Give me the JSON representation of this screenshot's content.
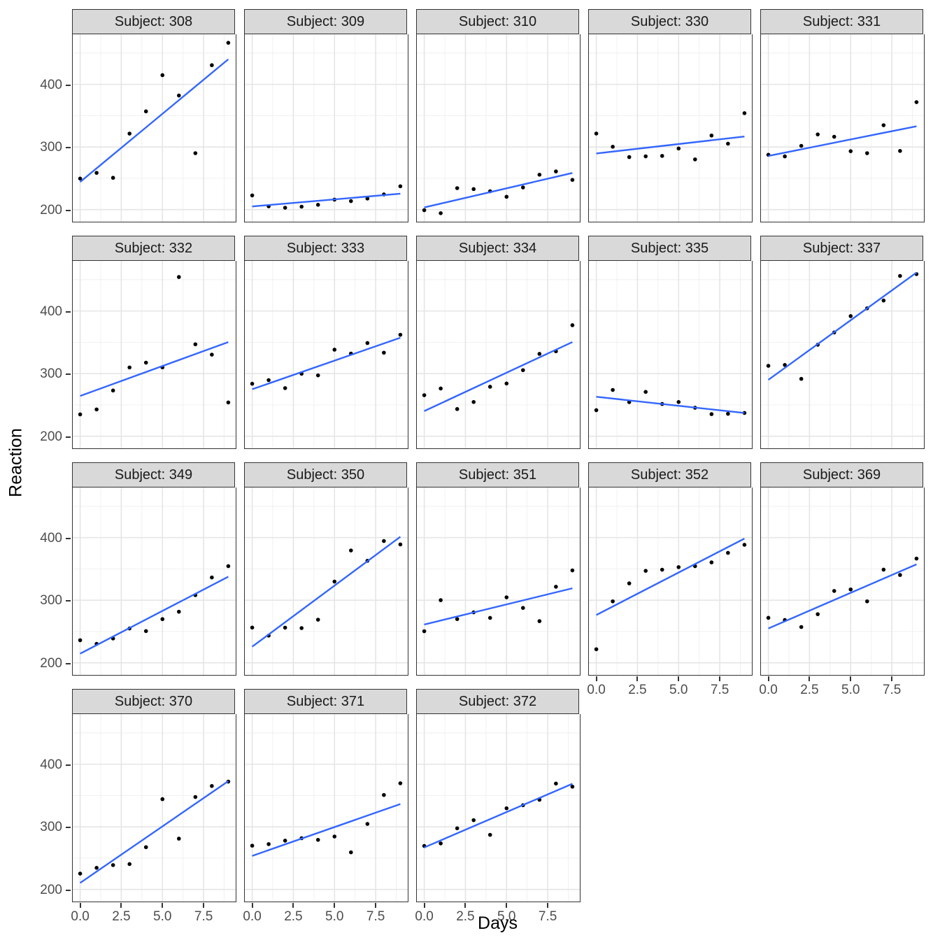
{
  "chart_data": {
    "type": "scatter",
    "xlabel": "Days",
    "ylabel": "Reaction",
    "facet_variable": "Subject",
    "x_tick_labels": [
      "0.0",
      "2.5",
      "5.0",
      "7.5"
    ],
    "x_tick_values": [
      0,
      2.5,
      5,
      7.5
    ],
    "y_tick_labels": [
      "200",
      "300",
      "400"
    ],
    "y_tick_values": [
      200,
      300,
      400
    ],
    "x_minor_values": [
      1.25,
      3.75,
      6.25,
      8.75
    ],
    "y_minor_values": [
      250,
      350,
      450
    ],
    "xlim": [
      -0.45,
      9.45
    ],
    "ylim": [
      180.7,
      480.0
    ],
    "days": [
      0,
      1,
      2,
      3,
      4,
      5,
      6,
      7,
      8,
      9
    ],
    "smooth": {
      "method": "lm",
      "color": "#3366FF"
    },
    "point_color": "#000000",
    "facets": [
      {
        "subject": "308",
        "label": "Subject: 308",
        "reaction": [
          249.6,
          258.7,
          250.8,
          321.4,
          356.9,
          414.7,
          382.2,
          290.1,
          430.6,
          466.4
        ]
      },
      {
        "subject": "309",
        "label": "Subject: 309",
        "reaction": [
          222.7,
          205.3,
          203.0,
          204.7,
          207.7,
          216.0,
          213.6,
          217.7,
          224.3,
          237.3
        ]
      },
      {
        "subject": "310",
        "label": "Subject: 310",
        "reaction": [
          199.1,
          194.3,
          234.3,
          232.8,
          229.3,
          220.5,
          235.4,
          255.8,
          261.0,
          247.5
        ]
      },
      {
        "subject": "330",
        "label": "Subject: 330",
        "reaction": [
          321.5,
          300.4,
          283.9,
          285.1,
          285.8,
          297.6,
          280.2,
          318.3,
          305.3,
          354.0
        ]
      },
      {
        "subject": "331",
        "label": "Subject: 331",
        "reaction": [
          287.6,
          285.0,
          301.8,
          320.1,
          316.3,
          293.3,
          290.1,
          334.8,
          293.7,
          371.6
        ]
      },
      {
        "subject": "332",
        "label": "Subject: 332",
        "reaction": [
          234.9,
          242.8,
          273.0,
          309.8,
          317.5,
          310.0,
          454.2,
          346.8,
          330.3,
          253.9
        ]
      },
      {
        "subject": "333",
        "label": "Subject: 333",
        "reaction": [
          283.8,
          289.6,
          276.8,
          299.8,
          297.2,
          338.2,
          332.0,
          348.8,
          333.4,
          362.0
        ]
      },
      {
        "subject": "334",
        "label": "Subject: 334",
        "reaction": [
          265.5,
          276.2,
          243.4,
          254.7,
          279.0,
          284.2,
          305.5,
          331.5,
          335.7,
          377.3
        ]
      },
      {
        "subject": "335",
        "label": "Subject: 335",
        "reaction": [
          241.6,
          273.9,
          254.5,
          270.8,
          251.5,
          254.6,
          245.5,
          235.3,
          235.8,
          237.2
        ]
      },
      {
        "subject": "337",
        "label": "Subject: 337",
        "reaction": [
          312.4,
          313.8,
          291.6,
          346.1,
          365.7,
          391.8,
          404.3,
          416.7,
          455.9,
          458.9
        ]
      },
      {
        "subject": "349",
        "label": "Subject: 349",
        "reaction": [
          236.1,
          230.3,
          238.9,
          254.9,
          250.7,
          269.8,
          281.6,
          308.1,
          336.3,
          354.4
        ]
      },
      {
        "subject": "350",
        "label": "Subject: 350",
        "reaction": [
          256.3,
          243.5,
          256.2,
          255.5,
          268.9,
          329.7,
          379.4,
          362.9,
          394.5,
          389.1
        ]
      },
      {
        "subject": "351",
        "label": "Subject: 351",
        "reaction": [
          250.5,
          300.1,
          269.9,
          280.6,
          271.8,
          304.6,
          287.7,
          266.6,
          321.5,
          347.6
        ]
      },
      {
        "subject": "352",
        "label": "Subject: 352",
        "reaction": [
          221.7,
          298.2,
          326.9,
          346.9,
          348.7,
          352.8,
          354.4,
          360.4,
          375.6,
          388.5
        ]
      },
      {
        "subject": "369",
        "label": "Subject: 369",
        "reaction": [
          271.9,
          268.4,
          257.2,
          277.7,
          314.8,
          317.2,
          298.2,
          348.8,
          340.3,
          366.5
        ]
      },
      {
        "subject": "370",
        "label": "Subject: 370",
        "reaction": [
          225.3,
          234.5,
          238.9,
          240.5,
          267.5,
          344.2,
          281.1,
          347.6,
          365.2,
          372.2
        ]
      },
      {
        "subject": "371",
        "label": "Subject: 371",
        "reaction": [
          269.9,
          272.4,
          277.9,
          281.8,
          279.2,
          284.5,
          259.3,
          304.6,
          350.8,
          369.5
        ]
      },
      {
        "subject": "372",
        "label": "Subject: 372",
        "reaction": [
          269.4,
          273.5,
          297.6,
          310.6,
          287.2,
          329.6,
          334.5,
          343.2,
          369.1,
          364.1
        ]
      }
    ],
    "style": {
      "strip_bg": "#D9D9D9",
      "strip_border": "#333333",
      "panel_border": "#333333",
      "grid_major": "#E5E5E5",
      "grid_minor": "#EFEFEF",
      "axis_text": "#4D4D4D",
      "tick_mark": "#333333"
    }
  }
}
